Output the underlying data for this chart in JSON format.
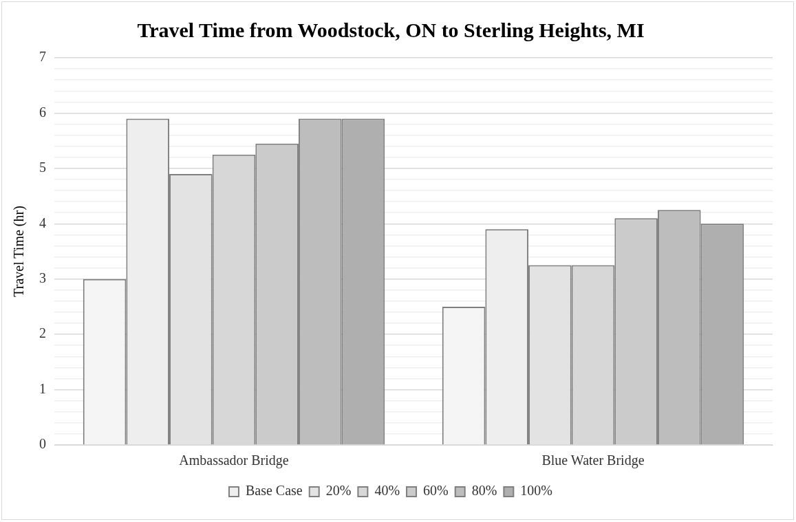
{
  "chart_data": {
    "type": "bar",
    "title": "Travel Time from Woodstock, ON to Sterling Heights, MI",
    "ylabel": "Travel Time (hr)",
    "categories": [
      "Ambassador Bridge",
      "Blue Water Bridge"
    ],
    "series": [
      {
        "color": "#f5f5f5",
        "values": [
          3,
          2.5
        ]
      },
      {
        "name": "Base Case",
        "color": "#eeeeee",
        "values": [
          5.9,
          3.9
        ]
      },
      {
        "name": "20%",
        "color": "#e3e3e3",
        "values": [
          4.9,
          3.25
        ]
      },
      {
        "name": "40%",
        "color": "#d7d7d7",
        "values": [
          5.25,
          3.25
        ]
      },
      {
        "name": "60%",
        "color": "#cbcbcb",
        "values": [
          5.45,
          4.1
        ]
      },
      {
        "name": "80%",
        "color": "#bdbdbd",
        "values": [
          5.9,
          4.25
        ]
      },
      {
        "name": "100%",
        "color": "#afafaf",
        "values": [
          5.9,
          4
        ]
      }
    ],
    "ylim": [
      0,
      7
    ],
    "yticks": [
      0,
      {
        "value": 0.2,
        "label": null
      },
      {
        "value": 0.4,
        "label": null
      },
      {
        "value": 0.6,
        "label": null
      },
      {
        "value": 0.8,
        "label": null
      },
      1,
      {
        "value": 1.2,
        "label": null
      },
      {
        "value": 1.4,
        "label": null
      },
      {
        "value": 1.6,
        "label": null
      },
      {
        "value": 1.8,
        "label": null
      },
      2,
      {
        "value": 2.2,
        "label": null
      },
      {
        "value": 2.4,
        "label": null
      },
      {
        "value": 2.6,
        "label": null
      },
      {
        "value": 2.8,
        "label": null
      },
      3,
      {
        "value": 3.2,
        "label": null
      },
      {
        "value": 3.4,
        "label": null
      },
      {
        "value": 3.6,
        "label": null
      },
      {
        "value": 3.8,
        "label": null
      },
      4,
      {
        "value": 4.2,
        "label": null
      },
      {
        "value": 4.4,
        "label": null
      },
      {
        "value": 4.6,
        "label": null
      },
      {
        "value": 4.8,
        "label": null
      },
      5,
      {
        "value": 5.2,
        "label": null
      },
      {
        "value": 5.4,
        "label": null
      },
      {
        "value": 5.6,
        "label": null
      },
      {
        "value": 5.8,
        "label": null
      },
      6,
      {
        "value": 6.2,
        "label": null
      },
      {
        "value": 6.4,
        "label": null
      },
      {
        "value": 6.6,
        "label": null
      },
      {
        "value": 6.8,
        "label": null
      },
      7
    ],
    "grid": "y",
    "legend": "bottom"
  }
}
